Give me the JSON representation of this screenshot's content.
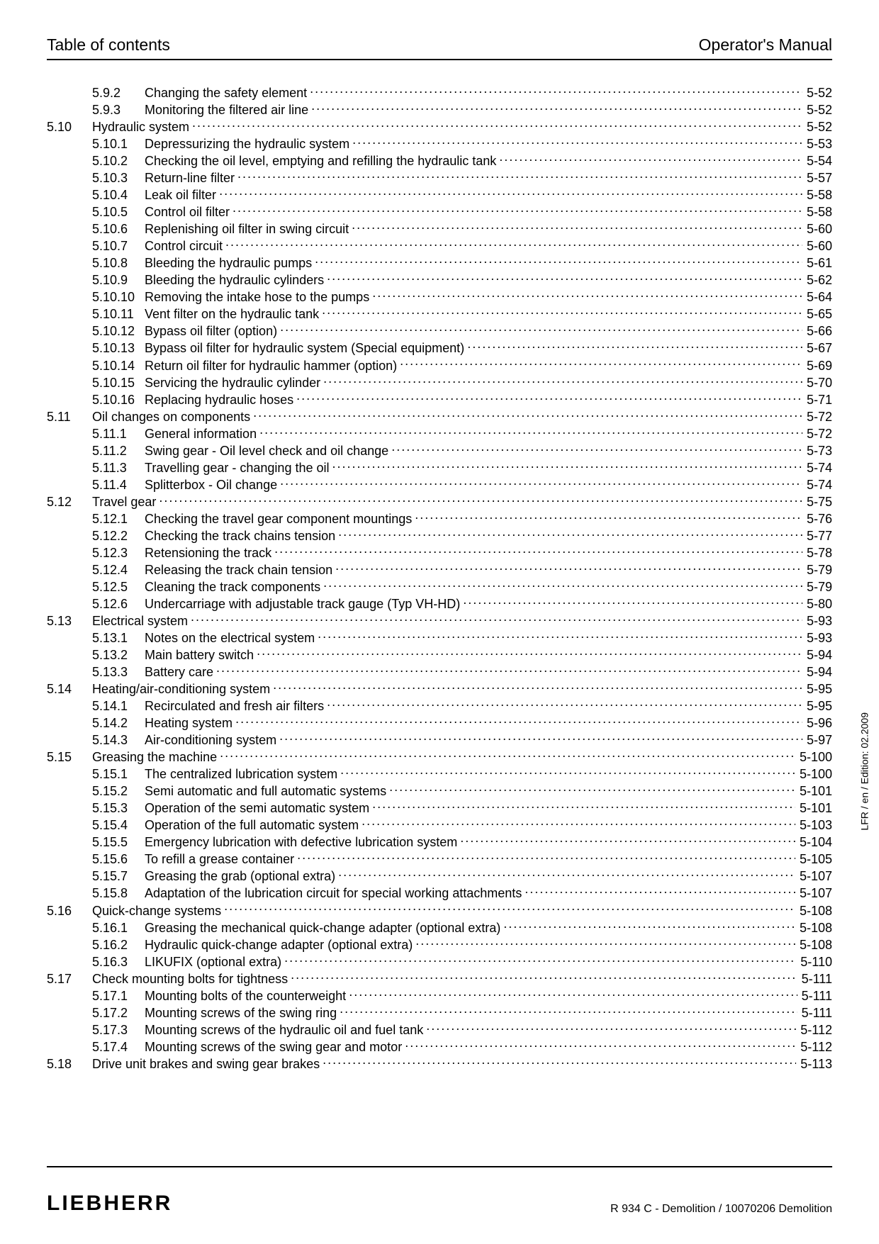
{
  "header": {
    "left": "Table of contents",
    "right": "Operator's Manual"
  },
  "side_note": "LFR / en / Edition: 02.2009",
  "footer": {
    "brand": "LIEBHERR",
    "doc_id": "R 934 C - Demolition / 10070206 Demolition"
  },
  "toc": [
    {
      "sec": "",
      "sub": "5.9.2",
      "title": "Changing the safety element",
      "page": "5-52"
    },
    {
      "sec": "",
      "sub": "5.9.3",
      "title": "Monitoring the filtered air line",
      "page": "5-52"
    },
    {
      "sec": "5.10",
      "sub": "",
      "title": "Hydraulic system",
      "page": "5-52"
    },
    {
      "sec": "",
      "sub": "5.10.1",
      "title": "Depressurizing the hydraulic system",
      "page": "5-53"
    },
    {
      "sec": "",
      "sub": "5.10.2",
      "title": "Checking the oil level, emptying and refilling the hydraulic tank",
      "page": "5-54"
    },
    {
      "sec": "",
      "sub": "5.10.3",
      "title": "Return-line filter",
      "page": "5-57"
    },
    {
      "sec": "",
      "sub": "5.10.4",
      "title": "Leak oil filter",
      "page": "5-58"
    },
    {
      "sec": "",
      "sub": "5.10.5",
      "title": "Control oil filter",
      "page": "5-58"
    },
    {
      "sec": "",
      "sub": "5.10.6",
      "title": "Replenishing oil filter in swing circuit",
      "page": "5-60"
    },
    {
      "sec": "",
      "sub": "5.10.7",
      "title": "Control circuit",
      "page": "5-60"
    },
    {
      "sec": "",
      "sub": "5.10.8",
      "title": "Bleeding the hydraulic pumps",
      "page": "5-61"
    },
    {
      "sec": "",
      "sub": "5.10.9",
      "title": "Bleeding the hydraulic cylinders",
      "page": "5-62"
    },
    {
      "sec": "",
      "sub": "5.10.10",
      "title": "Removing the intake hose to the pumps",
      "page": "5-64"
    },
    {
      "sec": "",
      "sub": "5.10.11",
      "title": "Vent filter on the hydraulic tank",
      "page": "5-65"
    },
    {
      "sec": "",
      "sub": "5.10.12",
      "title": "Bypass oil filter (option)",
      "page": "5-66"
    },
    {
      "sec": "",
      "sub": "5.10.13",
      "title": "Bypass oil filter for hydraulic system (Special equipment)",
      "page": "5-67"
    },
    {
      "sec": "",
      "sub": "5.10.14",
      "title": "Return oil filter for hydraulic hammer (option)",
      "page": "5-69"
    },
    {
      "sec": "",
      "sub": "5.10.15",
      "title": "Servicing the hydraulic cylinder",
      "page": "5-70"
    },
    {
      "sec": "",
      "sub": "5.10.16",
      "title": "Replacing hydraulic hoses",
      "page": "5-71"
    },
    {
      "sec": "5.11",
      "sub": "",
      "title": "Oil changes on components",
      "page": "5-72"
    },
    {
      "sec": "",
      "sub": "5.11.1",
      "title": "General information",
      "page": "5-72"
    },
    {
      "sec": "",
      "sub": "5.11.2",
      "title": "Swing gear - Oil level check and oil change",
      "page": "5-73"
    },
    {
      "sec": "",
      "sub": "5.11.3",
      "title": "Travelling gear - changing the oil",
      "page": "5-74"
    },
    {
      "sec": "",
      "sub": "5.11.4",
      "title": "Splitterbox - Oil change",
      "page": "5-74"
    },
    {
      "sec": "5.12",
      "sub": "",
      "title": "Travel gear",
      "page": "5-75"
    },
    {
      "sec": "",
      "sub": "5.12.1",
      "title": "Checking the travel gear component mountings",
      "page": "5-76"
    },
    {
      "sec": "",
      "sub": "5.12.2",
      "title": "Checking the track chains tension",
      "page": "5-77"
    },
    {
      "sec": "",
      "sub": "5.12.3",
      "title": "Retensioning the track",
      "page": "5-78"
    },
    {
      "sec": "",
      "sub": "5.12.4",
      "title": "Releasing the track chain tension",
      "page": "5-79"
    },
    {
      "sec": "",
      "sub": "5.12.5",
      "title": "Cleaning the track components",
      "page": "5-79"
    },
    {
      "sec": "",
      "sub": "5.12.6",
      "title": "Undercarriage with adjustable track gauge (Typ VH-HD)",
      "page": "5-80"
    },
    {
      "sec": "5.13",
      "sub": "",
      "title": "Electrical system",
      "page": "5-93"
    },
    {
      "sec": "",
      "sub": "5.13.1",
      "title": "Notes on the electrical system",
      "page": "5-93"
    },
    {
      "sec": "",
      "sub": "5.13.2",
      "title": "Main battery switch",
      "page": "5-94"
    },
    {
      "sec": "",
      "sub": "5.13.3",
      "title": "Battery care",
      "page": "5-94"
    },
    {
      "sec": "5.14",
      "sub": "",
      "title": "Heating/air-conditioning system",
      "page": "5-95"
    },
    {
      "sec": "",
      "sub": "5.14.1",
      "title": "Recirculated and fresh air filters",
      "page": "5-95"
    },
    {
      "sec": "",
      "sub": "5.14.2",
      "title": "Heating system",
      "page": "5-96"
    },
    {
      "sec": "",
      "sub": "5.14.3",
      "title": "Air-conditioning system",
      "page": "5-97"
    },
    {
      "sec": "5.15",
      "sub": "",
      "title": "Greasing the machine",
      "page": "5-100"
    },
    {
      "sec": "",
      "sub": "5.15.1",
      "title": "The centralized lubrication system",
      "page": "5-100"
    },
    {
      "sec": "",
      "sub": "5.15.2",
      "title": "Semi automatic and full automatic systems",
      "page": "5-101"
    },
    {
      "sec": "",
      "sub": "5.15.3",
      "title": "Operation of the semi automatic system",
      "page": "5-101"
    },
    {
      "sec": "",
      "sub": "5.15.4",
      "title": "Operation of the full automatic system",
      "page": "5-103"
    },
    {
      "sec": "",
      "sub": "5.15.5",
      "title": "Emergency lubrication with defective lubrication system",
      "page": "5-104"
    },
    {
      "sec": "",
      "sub": "5.15.6",
      "title": "To refill a grease container",
      "page": "5-105"
    },
    {
      "sec": "",
      "sub": "5.15.7",
      "title": "Greasing the grab (optional extra)",
      "page": "5-107"
    },
    {
      "sec": "",
      "sub": "5.15.8",
      "title": "Adaptation of the lubrication circuit for special working attachments",
      "page": "5-107"
    },
    {
      "sec": "5.16",
      "sub": "",
      "title": "Quick-change systems",
      "page": "5-108"
    },
    {
      "sec": "",
      "sub": "5.16.1",
      "title": "Greasing the mechanical quick-change adapter (optional extra)",
      "page": "5-108"
    },
    {
      "sec": "",
      "sub": "5.16.2",
      "title": "Hydraulic quick-change adapter (optional extra)",
      "page": "5-108"
    },
    {
      "sec": "",
      "sub": "5.16.3",
      "title": "LIKUFIX (optional extra)",
      "page": "5-110"
    },
    {
      "sec": "5.17",
      "sub": "",
      "title": "Check mounting bolts for tightness",
      "page": "5-111"
    },
    {
      "sec": "",
      "sub": "5.17.1",
      "title": "Mounting bolts of the counterweight",
      "page": "5-111"
    },
    {
      "sec": "",
      "sub": "5.17.2",
      "title": "Mounting screws of the swing ring",
      "page": "5-111"
    },
    {
      "sec": "",
      "sub": "5.17.3",
      "title": "Mounting screws of the hydraulic oil and fuel tank",
      "page": "5-112"
    },
    {
      "sec": "",
      "sub": "5.17.4",
      "title": "Mounting screws of the swing gear and motor",
      "page": "5-112"
    },
    {
      "sec": "5.18",
      "sub": "",
      "title": "Drive unit brakes and swing gear brakes",
      "page": "5-113"
    }
  ]
}
